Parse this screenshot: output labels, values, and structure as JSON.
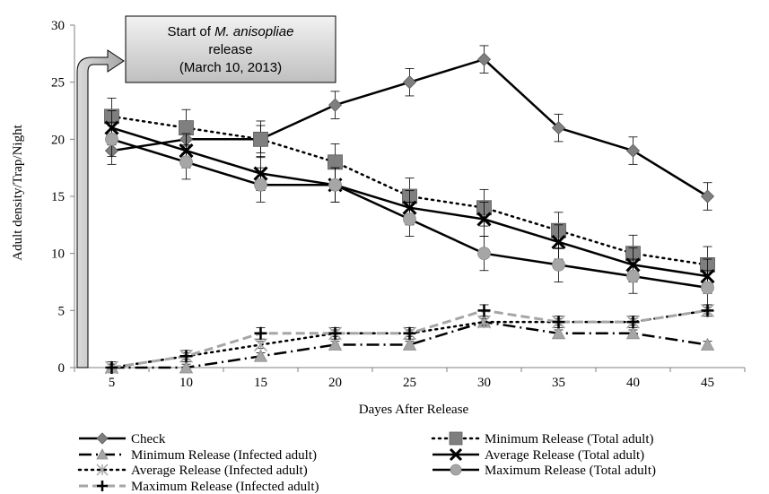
{
  "chart_data": {
    "type": "line",
    "xlabel": "Dayes After Release",
    "ylabel": "Adult density/Trap/Night",
    "x": [
      5,
      10,
      15,
      20,
      25,
      30,
      35,
      40,
      45
    ],
    "ylim": [
      0,
      30
    ],
    "yticks": [
      0,
      5,
      10,
      15,
      20,
      25,
      30
    ],
    "grid": false,
    "legend_position": "bottom",
    "annotation": {
      "line1": "Start of ",
      "line1_italic": "M. anisopliae",
      "line2": "release",
      "line3": "(March 10, 2013)"
    },
    "series": [
      {
        "name": "Check",
        "values": [
          19,
          20,
          20,
          23,
          25,
          27,
          21,
          19,
          15
        ],
        "errors": [
          1.2,
          1.2,
          1.2,
          1.2,
          1.2,
          1.2,
          1.2,
          1.2,
          1.2
        ],
        "color": "#000000",
        "marker": "diamond",
        "marker_color": "#7f7f7f",
        "dash": "solid"
      },
      {
        "name": "Minimum Release (Total adult)",
        "values": [
          22,
          21,
          20,
          18,
          15,
          14,
          12,
          10,
          9
        ],
        "errors": [
          1.6,
          1.6,
          1.6,
          1.6,
          1.6,
          1.6,
          1.6,
          1.6,
          1.6
        ],
        "color": "#000000",
        "marker": "square",
        "marker_color": "#7f7f7f",
        "dash": "dotted"
      },
      {
        "name": "Minimum Release (Infected adult)",
        "values": [
          0,
          0,
          1,
          2,
          2,
          4,
          3,
          3,
          2
        ],
        "errors": [
          0.3,
          0.3,
          0.3,
          0.3,
          0.3,
          0.3,
          0.3,
          0.3,
          0.3
        ],
        "color": "#000000",
        "marker": "triangle",
        "marker_color": "#a6a6a6",
        "dash": "dashdot"
      },
      {
        "name": "Average Release (Total adult)",
        "values": [
          21,
          19,
          17,
          16,
          14,
          13,
          11,
          9,
          8
        ],
        "errors": [
          1.5,
          1.5,
          1.5,
          1.5,
          1.5,
          1.5,
          1.5,
          1.5,
          1.5
        ],
        "color": "#000000",
        "marker": "x",
        "marker_color": "#000000",
        "dash": "solid"
      },
      {
        "name": "Average Release (Infected adult)",
        "values": [
          0,
          1,
          2,
          3,
          3,
          4,
          4,
          4,
          5
        ],
        "errors": [
          0.3,
          0.3,
          0.3,
          0.3,
          0.3,
          0.3,
          0.3,
          0.3,
          0.3
        ],
        "color": "#000000",
        "marker": "asterisk",
        "marker_color": "#a6a6a6",
        "dash": "dotted"
      },
      {
        "name": "Maximum Release (Total adult)",
        "values": [
          20,
          18,
          16,
          16,
          13,
          10,
          9,
          8,
          7
        ],
        "errors": [
          1.5,
          1.5,
          1.5,
          1.5,
          1.5,
          1.5,
          1.5,
          1.5,
          1.5
        ],
        "color": "#000000",
        "marker": "circle",
        "marker_color": "#a6a6a6",
        "dash": "solid"
      },
      {
        "name": "Maximum Release (Infected adult)",
        "values": [
          0,
          1,
          3,
          3,
          3,
          5,
          4,
          4,
          5
        ],
        "errors": [
          0.5,
          0.5,
          0.5,
          0.5,
          0.5,
          0.5,
          0.5,
          0.5,
          0.5
        ],
        "color": "#a6a6a6",
        "marker": "plus",
        "marker_color": "#000000",
        "dash": "dashed"
      }
    ]
  }
}
